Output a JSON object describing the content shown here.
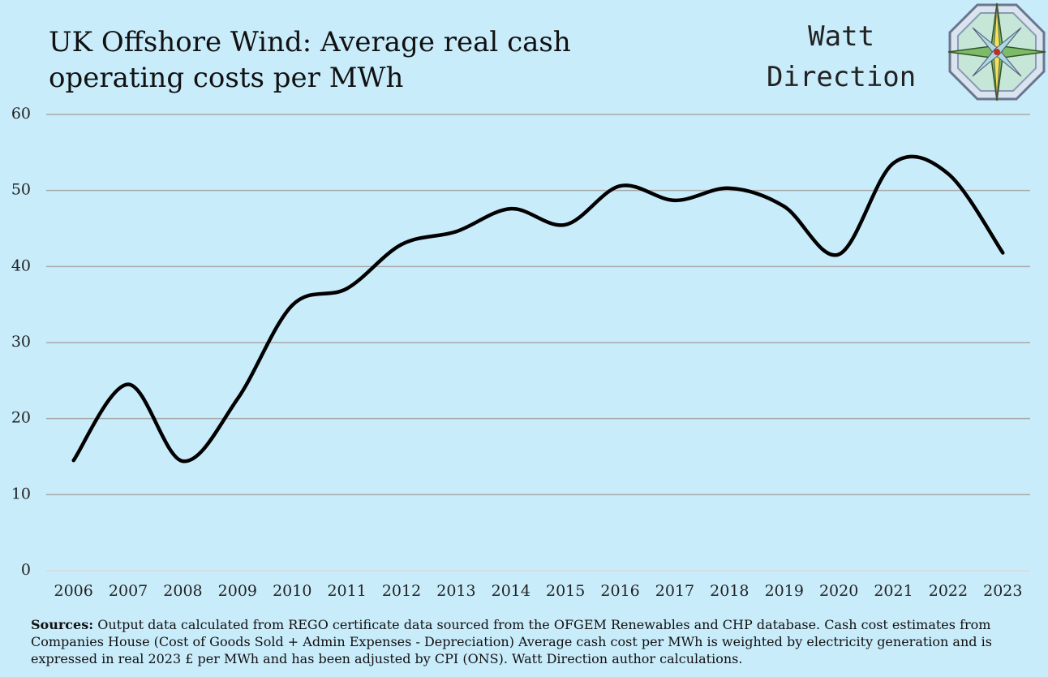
{
  "chart_data": {
    "type": "line",
    "title": "UK Offshore Wind:  Average real cash operating costs per MWh",
    "logo_text": [
      "Watt",
      "Direction"
    ],
    "categories": [
      "2006",
      "2007",
      "2008",
      "2009",
      "2010",
      "2011",
      "2012",
      "2013",
      "2014",
      "2015",
      "2016",
      "2017",
      "2018",
      "2019",
      "2020",
      "2021",
      "2022",
      "2023"
    ],
    "values": [
      14.5,
      24.5,
      14.4,
      22.6,
      34.9,
      37.1,
      42.9,
      44.6,
      47.6,
      45.5,
      50.6,
      48.7,
      50.3,
      47.9,
      41.6,
      53.6,
      52.2,
      41.8
    ],
    "color": "#000000",
    "ylim": [
      0,
      60
    ],
    "yticks": [
      0,
      10,
      20,
      30,
      40,
      50,
      60
    ],
    "grid": true,
    "sources_label": "Sources:",
    "sources_text": "Output data calculated from REGO certificate data sourced from the OFGEM Renewables and CHP database. Cash cost estimates from Companies House (Cost of Goods Sold + Admin Expenses - Depreciation) Average cash cost per MWh  is weighted by electricity generation and is expressed in real 2023  £ per MWh and has been adjusted by CPI (ONS). Watt Direction author calculations."
  }
}
